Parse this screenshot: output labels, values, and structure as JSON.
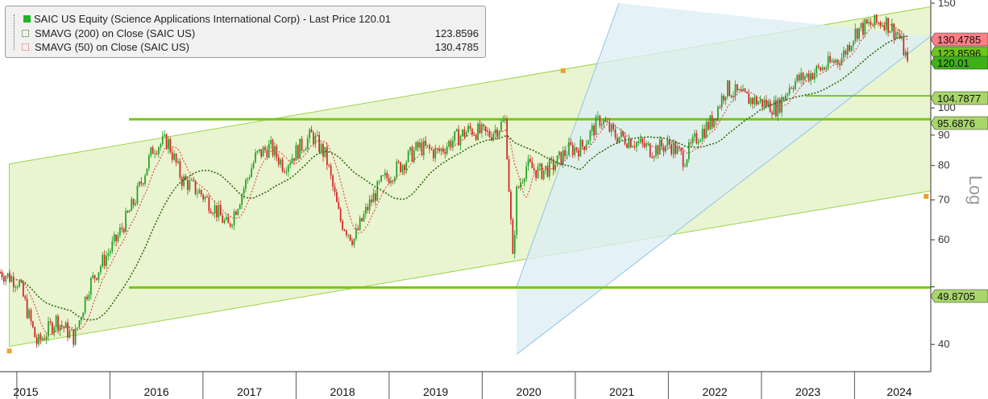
{
  "legend": {
    "title": "SAIC US Equity (Science Applications International Corp) - Last Price 120.01",
    "rows": [
      {
        "name": "SMAVG (200)  on Close (SAIC US)",
        "value": "123.8596"
      },
      {
        "name": "SMAVG (50)  on Close (SAIC US)",
        "value": "130.4785"
      }
    ]
  },
  "axis_label": "Log",
  "colors": {
    "up": "#1fa01f",
    "down": "#d42020",
    "band_fill": "#e9f5d0",
    "channel_fill": "#dbeef5",
    "green_line": "#7ac51b",
    "sma200": "#2f6b10",
    "sma50": "#e05050",
    "last_price_tag": "#3fb01a",
    "sma50_tag": "#ff7f86"
  },
  "chart_data": {
    "type": "candlestick",
    "scale": "log",
    "ylim": [
      36,
      150
    ],
    "y_ticks": [
      40,
      50,
      60,
      70,
      80,
      90,
      100,
      150
    ],
    "y_tick_labels": [
      "40",
      "",
      "60",
      "70",
      "80",
      "90",
      "100",
      "150"
    ],
    "x_labels": [
      "2015",
      "2016",
      "2017",
      "2018",
      "2019",
      "2020",
      "2021",
      "2022",
      "2023",
      "2024"
    ],
    "xlim": [
      2014.75,
      2024.75
    ],
    "series_keypoints": [
      [
        2014.75,
        53
      ],
      [
        2014.95,
        51
      ],
      [
        2015.15,
        40
      ],
      [
        2015.35,
        44
      ],
      [
        2015.55,
        41
      ],
      [
        2015.7,
        50
      ],
      [
        2015.85,
        55
      ],
      [
        2016.0,
        60
      ],
      [
        2016.2,
        70
      ],
      [
        2016.4,
        86
      ],
      [
        2016.55,
        88
      ],
      [
        2016.7,
        76
      ],
      [
        2016.9,
        72
      ],
      [
        2017.05,
        68
      ],
      [
        2017.2,
        63
      ],
      [
        2017.35,
        72
      ],
      [
        2017.5,
        83
      ],
      [
        2017.65,
        86
      ],
      [
        2017.8,
        80
      ],
      [
        2017.95,
        85
      ],
      [
        2018.1,
        90
      ],
      [
        2018.25,
        83
      ],
      [
        2018.4,
        65
      ],
      [
        2018.55,
        60
      ],
      [
        2018.7,
        68
      ],
      [
        2018.85,
        75
      ],
      [
        2019.05,
        80
      ],
      [
        2019.25,
        86
      ],
      [
        2019.45,
        84
      ],
      [
        2019.6,
        88
      ],
      [
        2019.8,
        92
      ],
      [
        2020.0,
        90
      ],
      [
        2020.18,
        95
      ],
      [
        2020.26,
        55
      ],
      [
        2020.3,
        72
      ],
      [
        2020.4,
        80
      ],
      [
        2020.55,
        78
      ],
      [
        2020.7,
        80
      ],
      [
        2020.85,
        85
      ],
      [
        2021.0,
        86
      ],
      [
        2021.2,
        96
      ],
      [
        2021.35,
        90
      ],
      [
        2021.55,
        88
      ],
      [
        2021.75,
        85
      ],
      [
        2021.95,
        87
      ],
      [
        2022.1,
        82
      ],
      [
        2022.25,
        90
      ],
      [
        2022.4,
        95
      ],
      [
        2022.55,
        108
      ],
      [
        2022.75,
        104
      ],
      [
        2022.95,
        102
      ],
      [
        2023.1,
        100
      ],
      [
        2023.25,
        110
      ],
      [
        2023.45,
        114
      ],
      [
        2023.6,
        117
      ],
      [
        2023.8,
        122
      ],
      [
        2023.95,
        135
      ],
      [
        2024.1,
        138
      ],
      [
        2024.25,
        140
      ],
      [
        2024.4,
        133
      ],
      [
        2024.5,
        120.01
      ]
    ],
    "last_price": 120.01,
    "sma200_last": 123.8596,
    "sma50_last": 130.4785,
    "horizontal_levels": [
      49.8705,
      95.6876,
      104.7877
    ],
    "value_tags": [
      {
        "label": "130.4785",
        "value": 130.4785,
        "color": "#ff7f86"
      },
      {
        "label": "123.8596",
        "value": 123.8596,
        "color": "#6cc61d"
      },
      {
        "label": "120.01",
        "value": 120.01,
        "color": "#3fb01a"
      },
      {
        "label": "104.7877",
        "value": 104.7877,
        "color": "#a8d66a"
      },
      {
        "label": "95.6876",
        "value": 95.6876,
        "color": "#a8d66a"
      },
      {
        "label": "49.8705",
        "value": 49.8705,
        "color": "#a8d66a"
      }
    ],
    "trend_band": {
      "upper": [
        [
          2014.85,
          80.5
        ],
        [
          2024.75,
          148
        ]
      ],
      "lower": [
        [
          2014.85,
          39.7
        ],
        [
          2024.75,
          72.5
        ]
      ]
    },
    "trend_band_handles": [
      [
        2014.85,
        39.0
      ],
      [
        2020.8,
        115.5
      ],
      [
        2024.7,
        71.0
      ]
    ],
    "channel": {
      "upper": [
        [
          2020.3,
          50
        ],
        [
          2021.4,
          150
        ]
      ],
      "lower": [
        [
          2020.3,
          38.5
        ],
        [
          2024.75,
          132
        ]
      ]
    },
    "grid": false,
    "legend_position": "top-left"
  }
}
